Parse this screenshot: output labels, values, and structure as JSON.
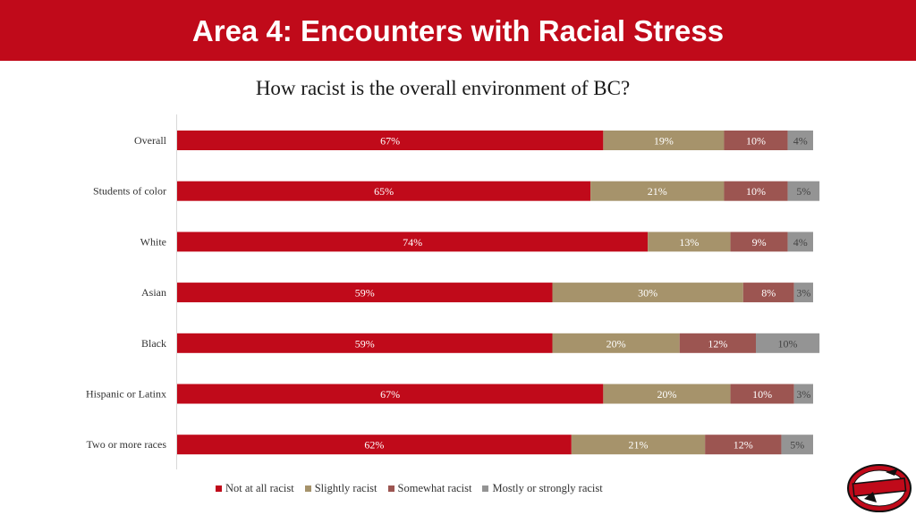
{
  "header": {
    "title": "Area 4: Encounters with Racial Stress"
  },
  "chart_data": {
    "type": "bar",
    "orientation": "horizontal",
    "stacked": true,
    "title": "How racist is the overall environment of BC?",
    "categories": [
      "Overall",
      "Students of color",
      "White",
      "Asian",
      "Black",
      "Hispanic or Latinx",
      "Two or more races"
    ],
    "series": [
      {
        "name": "Not at all racist",
        "color": "#c00a1a",
        "text_color": "#ffffff",
        "values": [
          67,
          65,
          74,
          59,
          59,
          67,
          62
        ]
      },
      {
        "name": "Slightly racist",
        "color": "#a6936b",
        "text_color": "#ffffff",
        "values": [
          19,
          21,
          13,
          30,
          20,
          20,
          21
        ]
      },
      {
        "name": "Somewhat racist",
        "color": "#9c5551",
        "text_color": "#ffffff",
        "values": [
          10,
          10,
          9,
          8,
          12,
          10,
          12
        ]
      },
      {
        "name": "Mostly or strongly racist",
        "color": "#949494",
        "text_color": "#444444",
        "values": [
          4,
          5,
          4,
          3,
          10,
          3,
          5
        ]
      }
    ],
    "xlim": [
      0,
      100
    ],
    "value_suffix": "%",
    "legend_position": "bottom",
    "grid": false
  },
  "logo": {
    "alt": "Renegades logo"
  }
}
